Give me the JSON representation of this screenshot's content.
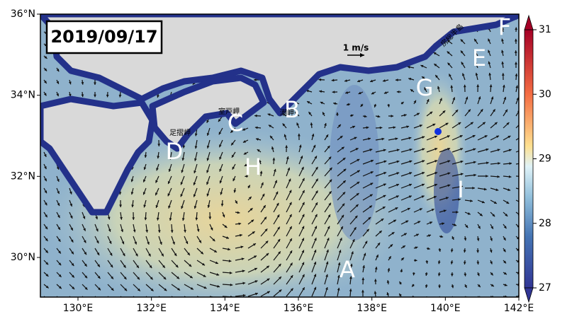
{
  "map": {
    "date_label": "2019/09/17",
    "scale_label": "1 m/s",
    "lon_ticks": [
      {
        "value": 130,
        "label": "130°E"
      },
      {
        "value": 132,
        "label": "132°E"
      },
      {
        "value": 134,
        "label": "134°E"
      },
      {
        "value": 136,
        "label": "136°E"
      },
      {
        "value": 138,
        "label": "138°E"
      },
      {
        "value": 140,
        "label": "140°E"
      },
      {
        "value": 142,
        "label": "142°E"
      }
    ],
    "lat_ticks": [
      {
        "value": 30,
        "label": "30°N"
      },
      {
        "value": 32,
        "label": "32°N"
      },
      {
        "value": 34,
        "label": "34°N"
      },
      {
        "value": 36,
        "label": "36°N"
      }
    ],
    "colorbar": {
      "range": [
        27,
        31
      ],
      "ticks": [
        27,
        28,
        29,
        30,
        31
      ]
    },
    "annotations": [
      "A",
      "B",
      "C",
      "D",
      "E",
      "F",
      "G",
      "H",
      "I"
    ],
    "place_names": [
      "房総半島",
      "室戸岬",
      "足摺岬",
      "潮岬"
    ]
  }
}
